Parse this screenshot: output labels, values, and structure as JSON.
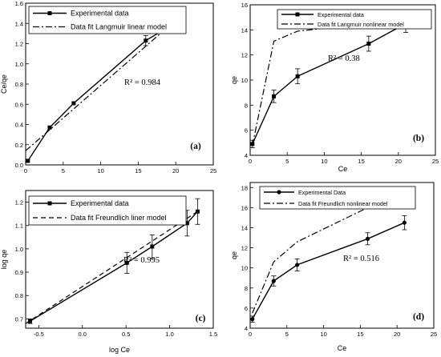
{
  "chart_data": [
    {
      "id": "a",
      "type": "line",
      "panel_label": "(a)",
      "title": "",
      "xlabel": "",
      "ylabel": "Ce/qe",
      "xlim": [
        0,
        25
      ],
      "ylim": [
        0,
        1.6
      ],
      "xticks": [
        "0",
        "5",
        "10",
        "15",
        "20",
        "25"
      ],
      "yticks": [
        "0.0",
        "0.2",
        "0.4",
        "0.6",
        "0.8",
        "1.0",
        "1.2",
        "1.4",
        "1.6"
      ],
      "annotation": "R² = 0.984",
      "legend_position": "top-left",
      "series": [
        {
          "name": "Experimental data",
          "style": "solid-square",
          "x": [
            0.3,
            3.2,
            6.4,
            16.0,
            21.0
          ],
          "y": [
            0.04,
            0.37,
            0.61,
            1.23,
            1.45
          ],
          "err": [
            0,
            0,
            0,
            0.05,
            0.06
          ]
        },
        {
          "name": "Data fit Langmuir linear model",
          "style": "dashdot",
          "x": [
            0,
            21.2
          ],
          "y": [
            0.14,
            1.51
          ]
        }
      ]
    },
    {
      "id": "b",
      "type": "line",
      "panel_label": "(b)",
      "title": "",
      "xlabel": "Ce",
      "ylabel": "qe",
      "xlim": [
        0,
        25
      ],
      "ylim": [
        4,
        16
      ],
      "xticks": [
        "0",
        "5",
        "10",
        "15",
        "20",
        "25"
      ],
      "yticks": [
        "4",
        "6",
        "8",
        "10",
        "12",
        "14",
        "16"
      ],
      "annotation": "R² = 0.38",
      "legend_position": "top-right",
      "series": [
        {
          "name": "Experimental data",
          "style": "solid-square",
          "x": [
            0.3,
            3.2,
            6.4,
            16.0,
            21.0
          ],
          "y": [
            4.9,
            8.7,
            10.3,
            12.9,
            14.5
          ],
          "err": [
            0.3,
            0.5,
            0.6,
            0.6,
            0.7
          ]
        },
        {
          "name": "Data fit Langmuir nonlinear model",
          "style": "dashdot",
          "x": [
            0.3,
            3.2,
            6.4,
            16.0,
            21.0
          ],
          "y": [
            4.8,
            13.1,
            13.9,
            14.5,
            14.6
          ]
        }
      ]
    },
    {
      "id": "c",
      "type": "line",
      "panel_label": "(c)",
      "title": "",
      "xlabel": "log Ce",
      "ylabel": "log qe",
      "xlim": [
        -0.65,
        1.5
      ],
      "ylim": [
        0.66,
        1.25
      ],
      "xticks": [
        "-0.5",
        "0.0",
        "0.5",
        "1.0",
        "1.5"
      ],
      "yticks": [
        "0.7",
        "0.8",
        "0.9",
        "1.0",
        "1.1",
        "1.2"
      ],
      "annotation": "R² = 0.995",
      "legend_position": "top-left",
      "series": [
        {
          "name": "Experimental data",
          "style": "solid-square",
          "x": [
            -0.6,
            0.51,
            0.8,
            1.2,
            1.32
          ],
          "y": [
            0.69,
            0.94,
            1.01,
            1.11,
            1.16
          ],
          "err": [
            0.01,
            0.045,
            0.05,
            0.055,
            0.055
          ]
        },
        {
          "name": "Data fit Freundlich liner model",
          "style": "dashed",
          "x": [
            -0.65,
            1.32
          ],
          "y": [
            0.68,
            1.16
          ]
        }
      ]
    },
    {
      "id": "d",
      "type": "line",
      "panel_label": "(d)",
      "title": "",
      "xlabel": "Ce",
      "ylabel": "qe",
      "xlim": [
        0,
        25
      ],
      "ylim": [
        4,
        18.5
      ],
      "xticks": [
        "0",
        "5",
        "10",
        "15",
        "20",
        "25"
      ],
      "yticks": [
        "4",
        "6",
        "8",
        "10",
        "12",
        "14",
        "16",
        "18"
      ],
      "annotation": "R² = 0.516",
      "legend_position": "top-left",
      "series": [
        {
          "name": "Experimental Data",
          "style": "solid-circle",
          "x": [
            0.3,
            3.2,
            6.4,
            16.0,
            21.0
          ],
          "y": [
            4.9,
            8.7,
            10.3,
            12.9,
            14.5
          ],
          "err": [
            0.3,
            0.5,
            0.6,
            0.6,
            0.7
          ]
        },
        {
          "name": "Data fit Freundlich nonlinear model",
          "style": "dashdot",
          "x": [
            0.3,
            3.2,
            6.4,
            16.0,
            21.0
          ],
          "y": [
            5.5,
            10.6,
            12.6,
            16.0,
            17.1
          ]
        }
      ]
    }
  ]
}
